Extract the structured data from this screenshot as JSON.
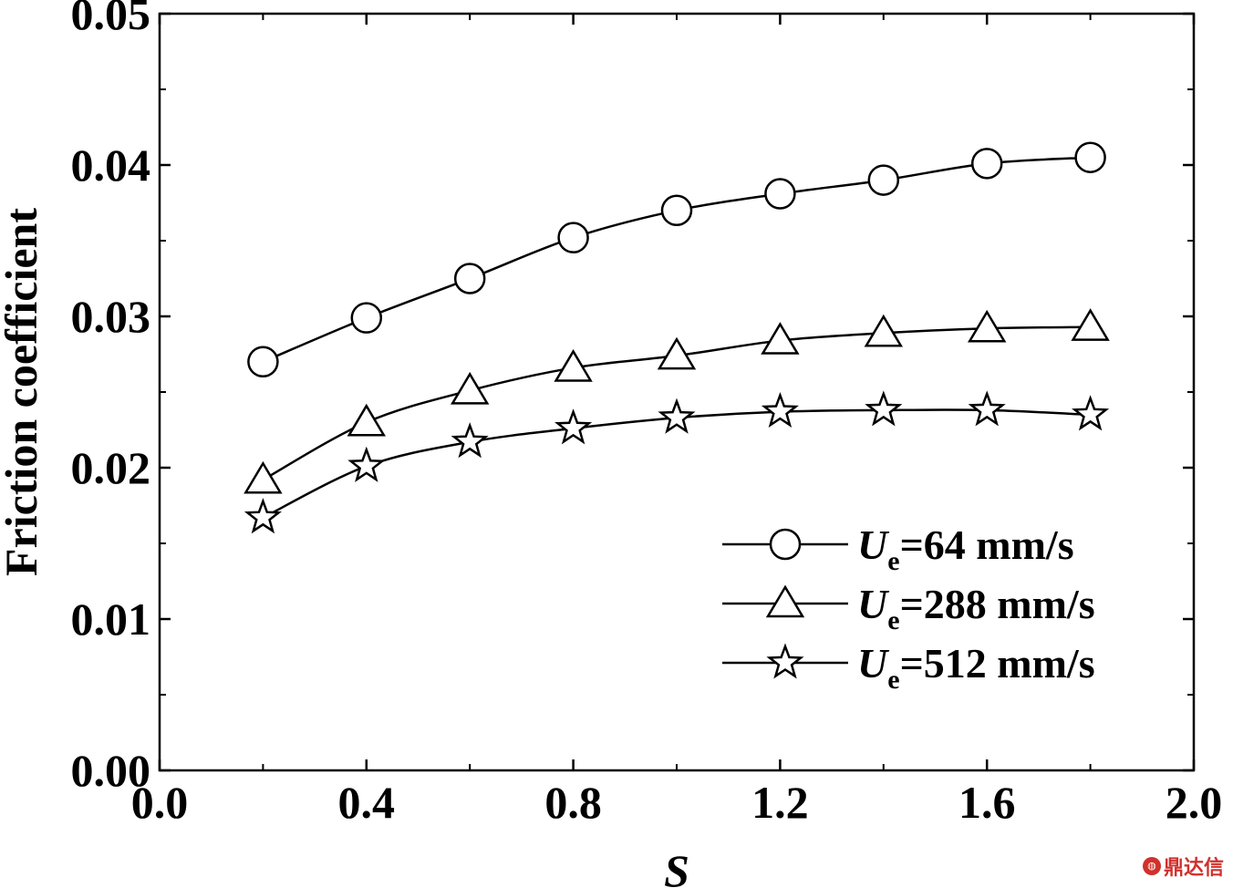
{
  "chart_data": {
    "type": "line",
    "title": "",
    "xlabel": "S",
    "ylabel": "Friction coefficient",
    "xlim": [
      0.0,
      2.0
    ],
    "ylim": [
      0.0,
      0.05
    ],
    "x_ticks": [
      "0.0",
      "0.4",
      "0.8",
      "1.2",
      "1.6",
      "2.0"
    ],
    "y_ticks": [
      "0.00",
      "0.01",
      "0.02",
      "0.03",
      "0.04",
      "0.05"
    ],
    "grid": false,
    "legend_position": "bottom-right",
    "x": [
      0.2,
      0.4,
      0.6,
      0.8,
      1.0,
      1.2,
      1.4,
      1.6,
      1.8
    ],
    "series": [
      {
        "name_main": "U",
        "name_sub": "e",
        "name_rest": "=64 mm/s",
        "marker": "circle",
        "values": [
          0.027,
          0.0299,
          0.0325,
          0.0352,
          0.037,
          0.0381,
          0.039,
          0.0401,
          0.0405
        ]
      },
      {
        "name_main": "U",
        "name_sub": "e",
        "name_rest": "=288 mm/s",
        "marker": "triangle",
        "values": [
          0.0192,
          0.023,
          0.0251,
          0.0266,
          0.0274,
          0.0284,
          0.0289,
          0.0292,
          0.0293
        ]
      },
      {
        "name_main": "U",
        "name_sub": "e",
        "name_rest": "=512 mm/s",
        "marker": "star",
        "values": [
          0.0167,
          0.0201,
          0.0217,
          0.0226,
          0.0233,
          0.0237,
          0.0238,
          0.0238,
          0.0235
        ]
      }
    ]
  },
  "watermark": {
    "icon": "logo-icon",
    "text": "鼎达信"
  }
}
